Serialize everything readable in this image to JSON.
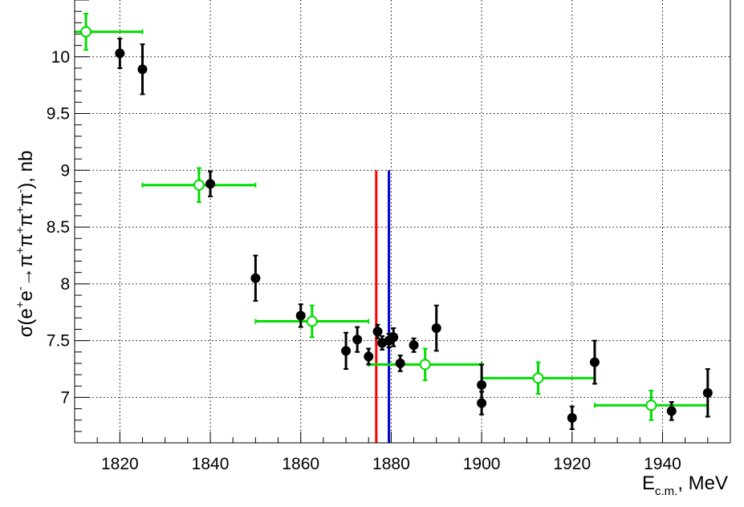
{
  "chart_data": {
    "type": "scatter",
    "xlabel": "E",
    "xlabel_sub": "c.m.",
    "xlabel_unit": ", MeV",
    "ylabel_parts": {
      "pre": "σ(e",
      "sup1": "+",
      "e2": "e",
      "sup2": "-",
      "arrow": "→π",
      "sup3": "+",
      "pi2": "π",
      "sup4": "+",
      "pi3": "π",
      "sup5": "+",
      "pi4": "π",
      "sup6": "-",
      "post": "), nb"
    },
    "xlim": [
      1810,
      1955
    ],
    "ylim": [
      6.6,
      10.5
    ],
    "grid": true,
    "x_ticks": [
      1820,
      1840,
      1860,
      1880,
      1900,
      1920,
      1940
    ],
    "y_ticks": [
      {
        "value": 7,
        "label": "7"
      },
      {
        "value": 7.5,
        "label": "7.5"
      },
      {
        "value": 8,
        "label": "8"
      },
      {
        "value": 8.5,
        "label": "8.5"
      },
      {
        "value": 9,
        "label": "9"
      },
      {
        "value": 9.5,
        "label": "9.5"
      },
      {
        "value": 10,
        "label": "10"
      }
    ],
    "series": [
      {
        "marker": "filled-circle",
        "color": "#000000",
        "points": [
          {
            "x": 1820,
            "y": 10.03,
            "err": 0.13
          },
          {
            "x": 1825,
            "y": 9.89,
            "err": 0.22
          },
          {
            "x": 1840,
            "y": 8.88,
            "err": 0.11
          },
          {
            "x": 1850,
            "y": 8.05,
            "err": 0.2
          },
          {
            "x": 1860,
            "y": 7.72,
            "err": 0.1
          },
          {
            "x": 1870,
            "y": 7.41,
            "err": 0.16
          },
          {
            "x": 1872.5,
            "y": 7.51,
            "err": 0.11
          },
          {
            "x": 1875,
            "y": 7.36,
            "err": 0.07
          },
          {
            "x": 1877,
            "y": 7.58,
            "err": 0.06
          },
          {
            "x": 1878,
            "y": 7.48,
            "err": 0.06
          },
          {
            "x": 1879.5,
            "y": 7.5,
            "err": 0.06
          },
          {
            "x": 1880.5,
            "y": 7.53,
            "err": 0.08
          },
          {
            "x": 1882,
            "y": 7.3,
            "err": 0.07
          },
          {
            "x": 1885,
            "y": 7.46,
            "err": 0.06
          },
          {
            "x": 1890,
            "y": 7.61,
            "err": 0.2
          },
          {
            "x": 1900,
            "y": 7.11,
            "err": 0.18
          },
          {
            "x": 1900,
            "y": 6.95,
            "err": 0.1
          },
          {
            "x": 1920,
            "y": 6.82,
            "err": 0.1
          },
          {
            "x": 1925,
            "y": 7.31,
            "err": 0.19
          },
          {
            "x": 1942,
            "y": 6.88,
            "err": 0.08
          },
          {
            "x": 1950,
            "y": 7.04,
            "err": 0.21
          }
        ]
      },
      {
        "marker": "open-circle",
        "color": "#00dd00",
        "points": [
          {
            "x": 1812.5,
            "xerr": 12.5,
            "y": 10.22,
            "err": 0.16
          },
          {
            "x": 1837.5,
            "xerr": 12.5,
            "y": 8.87,
            "err": 0.15
          },
          {
            "x": 1862.5,
            "xerr": 12.5,
            "y": 7.67,
            "err": 0.14
          },
          {
            "x": 1887.5,
            "xerr": 12.5,
            "y": 7.29,
            "err": 0.14
          },
          {
            "x": 1912.5,
            "xerr": 12.5,
            "y": 7.17,
            "err": 0.14
          },
          {
            "x": 1937.5,
            "xerr": 12.5,
            "y": 6.93,
            "err": 0.13
          }
        ]
      }
    ],
    "vertical_lines": [
      {
        "x": 1876.7,
        "y_top": 9.0,
        "color": "#ff0000"
      },
      {
        "x": 1879.5,
        "y_top": 9.0,
        "color": "#0000cc"
      }
    ]
  }
}
